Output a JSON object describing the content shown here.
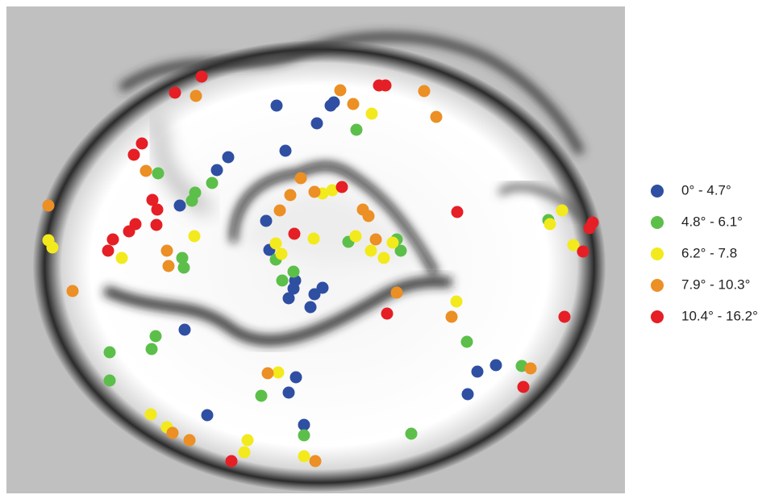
{
  "legend": {
    "items": [
      {
        "label": "0° - 4.7°",
        "color": "#2f4fa2"
      },
      {
        "label": "4.8° - 6.1°",
        "color": "#5cbf4a"
      },
      {
        "label": "6.2° - 7.8",
        "color": "#f2ea1c"
      },
      {
        "label": "7.9° - 10.3°",
        "color": "#ec8f25"
      },
      {
        "label": "10.4° - 16.2°",
        "color": "#e51f25"
      }
    ]
  }
}
